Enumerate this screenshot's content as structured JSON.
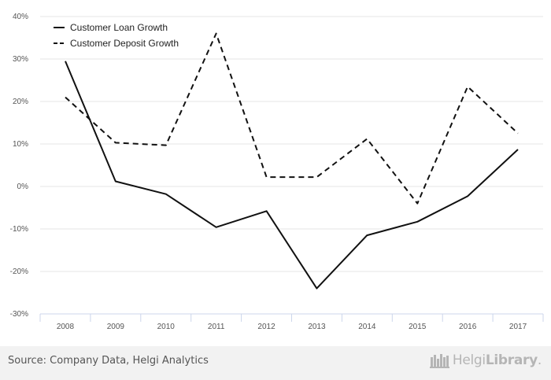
{
  "chart_data": {
    "type": "line",
    "categories": [
      "2008",
      "2009",
      "2010",
      "2011",
      "2012",
      "2013",
      "2014",
      "2015",
      "2016",
      "2017"
    ],
    "series": [
      {
        "name": "Customer Loan Growth",
        "style": "solid",
        "color": "#111111",
        "values": [
          29.5,
          1.2,
          -1.8,
          -9.6,
          -5.8,
          -24.0,
          -11.5,
          -8.3,
          -2.3,
          8.7
        ]
      },
      {
        "name": "Customer Deposit Growth",
        "style": "dashed",
        "color": "#111111",
        "values": [
          21.0,
          10.3,
          9.7,
          36.0,
          2.2,
          2.2,
          11.2,
          -4.0,
          23.5,
          12.5
        ]
      }
    ],
    "y_ticks": [
      "40%",
      "30%",
      "20%",
      "10%",
      "0%",
      "-10%",
      "-20%",
      "-30%"
    ],
    "ylim": [
      -30,
      40
    ],
    "legend_position": "top-left",
    "grid": true,
    "gridline_color": "#e6e6e6"
  },
  "footer": {
    "source": "Source: Company Data, Helgi Analytics",
    "brand_light": "Helgi",
    "brand_bold": "Library",
    "brand_suffix": "."
  }
}
